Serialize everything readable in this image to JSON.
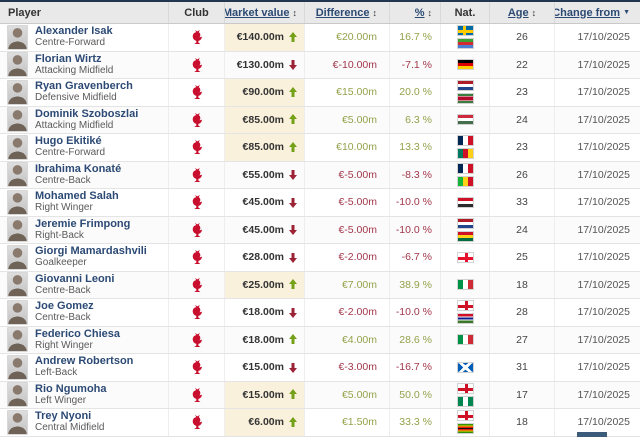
{
  "header": {
    "player": "Player",
    "club": "Club",
    "market_value": "Market value",
    "difference": "Difference",
    "percent": "%",
    "nat": "Nat.",
    "age": "Age",
    "change_from": "Change from",
    "sort_icon": "↕",
    "active_sort_icon": "▼"
  },
  "club": {
    "crest_icon": "liverpool-crest"
  },
  "colors": {
    "highlight_bg": "#faf1dc",
    "positive_text": "#94a24b",
    "negative_text": "#a2374b",
    "arrow_up": "#74a117",
    "arrow_down": "#9b2335",
    "header_link": "#2b4a73",
    "player_link": "#2c4a75",
    "crest_red": "#c8102e"
  },
  "rows": [
    {
      "name": "Alexander Isak",
      "position": "Centre-Forward",
      "market_value": "€140.00m",
      "trend": "up",
      "highlight": true,
      "difference": "€20.00m",
      "percent": "16.7 %",
      "nationalities": [
        "Sweden",
        "Eritrea"
      ],
      "age": "26",
      "change_from": "17/10/2025"
    },
    {
      "name": "Florian Wirtz",
      "position": "Attacking Midfield",
      "market_value": "€130.00m",
      "trend": "down",
      "highlight": false,
      "difference": "€-10.00m",
      "percent": "-7.1 %",
      "nationalities": [
        "Germany"
      ],
      "age": "22",
      "change_from": "17/10/2025"
    },
    {
      "name": "Ryan Gravenberch",
      "position": "Defensive Midfield",
      "market_value": "€90.00m",
      "trend": "up",
      "highlight": true,
      "difference": "€15.00m",
      "percent": "20.0 %",
      "nationalities": [
        "Netherlands",
        "Suriname"
      ],
      "age": "23",
      "change_from": "17/10/2025"
    },
    {
      "name": "Dominik Szoboszlai",
      "position": "Attacking Midfield",
      "market_value": "€85.00m",
      "trend": "up",
      "highlight": true,
      "difference": "€5.00m",
      "percent": "6.3 %",
      "nationalities": [
        "Hungary"
      ],
      "age": "24",
      "change_from": "17/10/2025"
    },
    {
      "name": "Hugo Ekitiké",
      "position": "Centre-Forward",
      "market_value": "€85.00m",
      "trend": "up",
      "highlight": true,
      "difference": "€10.00m",
      "percent": "13.3 %",
      "nationalities": [
        "France",
        "Cameroon"
      ],
      "age": "23",
      "change_from": "17/10/2025"
    },
    {
      "name": "Ibrahima Konaté",
      "position": "Centre-Back",
      "market_value": "€55.00m",
      "trend": "down",
      "highlight": false,
      "difference": "€-5.00m",
      "percent": "-8.3 %",
      "nationalities": [
        "France",
        "Mali"
      ],
      "age": "26",
      "change_from": "17/10/2025"
    },
    {
      "name": "Mohamed Salah",
      "position": "Right Winger",
      "market_value": "€45.00m",
      "trend": "down",
      "highlight": false,
      "difference": "€-5.00m",
      "percent": "-10.0 %",
      "nationalities": [
        "Egypt"
      ],
      "age": "33",
      "change_from": "17/10/2025"
    },
    {
      "name": "Jeremie Frimpong",
      "position": "Right-Back",
      "market_value": "€45.00m",
      "trend": "down",
      "highlight": false,
      "difference": "€-5.00m",
      "percent": "-10.0 %",
      "nationalities": [
        "Netherlands",
        "Ghana"
      ],
      "age": "24",
      "change_from": "17/10/2025"
    },
    {
      "name": "Giorgi Mamardashvili",
      "position": "Goalkeeper",
      "market_value": "€28.00m",
      "trend": "down",
      "highlight": false,
      "difference": "€-2.00m",
      "percent": "-6.7 %",
      "nationalities": [
        "Georgia"
      ],
      "age": "25",
      "change_from": "17/10/2025"
    },
    {
      "name": "Giovanni Leoni",
      "position": "Centre-Back",
      "market_value": "€25.00m",
      "trend": "up",
      "highlight": true,
      "difference": "€7.00m",
      "percent": "38.9 %",
      "nationalities": [
        "Italy"
      ],
      "age": "18",
      "change_from": "17/10/2025"
    },
    {
      "name": "Joe Gomez",
      "position": "Centre-Back",
      "market_value": "€18.00m",
      "trend": "down",
      "highlight": false,
      "difference": "€-2.00m",
      "percent": "-10.0 %",
      "nationalities": [
        "England",
        "Gambia"
      ],
      "age": "28",
      "change_from": "17/10/2025"
    },
    {
      "name": "Federico Chiesa",
      "position": "Right Winger",
      "market_value": "€18.00m",
      "trend": "up",
      "highlight": false,
      "difference": "€4.00m",
      "percent": "28.6 %",
      "nationalities": [
        "Italy"
      ],
      "age": "27",
      "change_from": "17/10/2025"
    },
    {
      "name": "Andrew Robertson",
      "position": "Left-Back",
      "market_value": "€15.00m",
      "trend": "down",
      "highlight": false,
      "difference": "€-3.00m",
      "percent": "-16.7 %",
      "nationalities": [
        "Scotland"
      ],
      "age": "31",
      "change_from": "17/10/2025"
    },
    {
      "name": "Rio Ngumoha",
      "position": "Left Winger",
      "market_value": "€15.00m",
      "trend": "up",
      "highlight": true,
      "difference": "€5.00m",
      "percent": "50.0 %",
      "nationalities": [
        "England",
        "Nigeria"
      ],
      "age": "17",
      "change_from": "17/10/2025"
    },
    {
      "name": "Trey Nyoni",
      "position": "Central Midfield",
      "market_value": "€6.00m",
      "trend": "up",
      "highlight": true,
      "difference": "€1.50m",
      "percent": "33.3 %",
      "nationalities": [
        "England",
        "Zimbabwe"
      ],
      "age": "18",
      "change_from": "17/10/2025"
    }
  ]
}
